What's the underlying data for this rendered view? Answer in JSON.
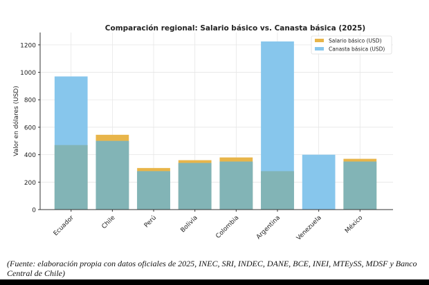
{
  "chart_data": {
    "type": "bar",
    "title": "Comparación regional: Salario básico vs. Canasta básica (2025)",
    "xlabel": "",
    "ylabel": "Valor en dólares (USD)",
    "ylim": [
      0,
      1290
    ],
    "yticks": [
      0,
      200,
      400,
      600,
      800,
      1000,
      1200
    ],
    "grid": true,
    "legend_position": "top-right",
    "categories": [
      "Ecuador",
      "Chile",
      "Perú",
      "Bolivia",
      "Colombia",
      "Argentina",
      "Venezuela",
      "México"
    ],
    "series": [
      {
        "name": "Salario básico (USD)",
        "color": "#E8B54A",
        "values": [
          470,
          545,
          303,
          360,
          380,
          280,
          0,
          370
        ]
      },
      {
        "name": "Canasta básica (USD)",
        "color": "#87C6EC",
        "values": [
          970,
          500,
          280,
          340,
          350,
          1225,
          400,
          350
        ]
      }
    ],
    "overlap_color": "#82B4B6"
  },
  "footnote": "(Fuente: elaboración propia con datos oficiales de 2025, INEC, SRI, INDEC, DANE, BCE, INEI, MTEySS, MDSF y Banco Central de Chile)"
}
